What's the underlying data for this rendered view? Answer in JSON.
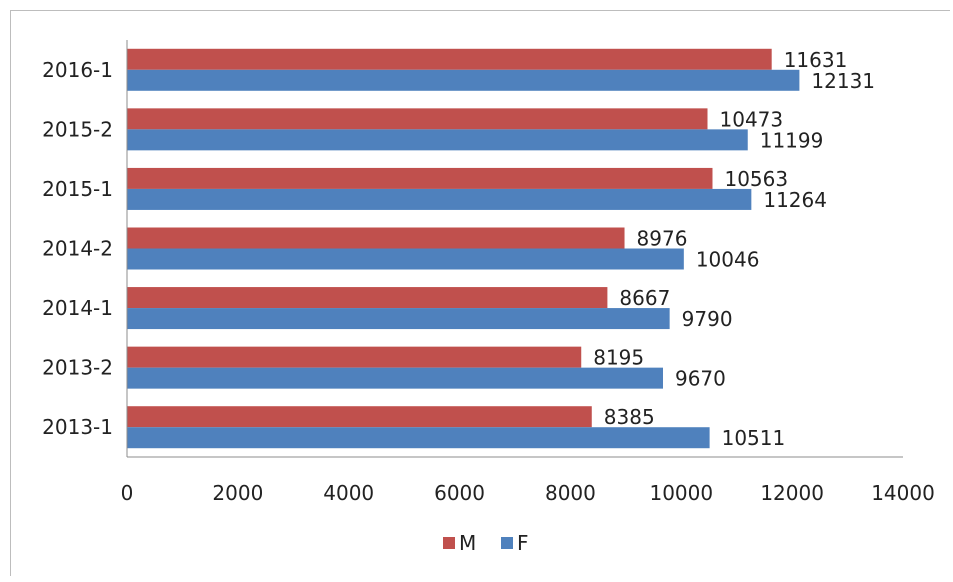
{
  "chart_data": {
    "type": "bar",
    "orientation": "horizontal",
    "categories": [
      "2013-1",
      "2013-2",
      "2014-1",
      "2014-2",
      "2015-1",
      "2015-2",
      "2016-1"
    ],
    "series": [
      {
        "name": "M",
        "color": "#c0504d",
        "values": [
          8385,
          8195,
          8667,
          8976,
          10563,
          10473,
          11631
        ]
      },
      {
        "name": "F",
        "color": "#4f81bd",
        "values": [
          10511,
          9670,
          9790,
          10046,
          11264,
          11199,
          12131
        ]
      }
    ],
    "x_ticks": [
      "0",
      "2000",
      "4000",
      "6000",
      "8000",
      "10000",
      "12000",
      "14000"
    ],
    "xlim": [
      0,
      14000
    ],
    "grid": false,
    "data_labels": true,
    "legend_position": "bottom",
    "title": "",
    "xlabel": "",
    "ylabel": ""
  }
}
